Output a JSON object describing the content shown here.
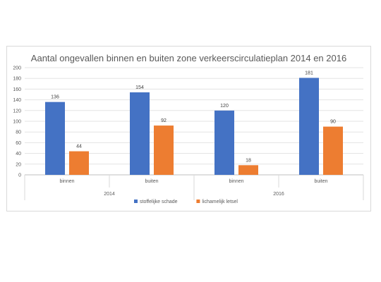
{
  "chart_data": {
    "type": "bar",
    "title": "Aantal ongevallen binnen en buiten zone verkeerscirculatieplan 2014 en 2016",
    "xlabel": "",
    "ylabel": "",
    "ylim": [
      0,
      200
    ],
    "yticks": [
      0,
      20,
      40,
      60,
      80,
      100,
      120,
      140,
      160,
      180,
      200
    ],
    "grid": true,
    "legend_position": "bottom",
    "categories": [
      "binnen",
      "buiten",
      "binnen",
      "buiten"
    ],
    "groups": [
      {
        "label": "2014",
        "categories": [
          "binnen",
          "buiten"
        ]
      },
      {
        "label": "2016",
        "categories": [
          "binnen",
          "buiten"
        ]
      }
    ],
    "series": [
      {
        "name": "stoffelijke schade",
        "color": "#4472c4",
        "values": [
          136,
          154,
          120,
          181
        ]
      },
      {
        "name": "lichamelijk letsel",
        "color": "#ed7d31",
        "values": [
          44,
          92,
          18,
          90
        ]
      }
    ]
  }
}
